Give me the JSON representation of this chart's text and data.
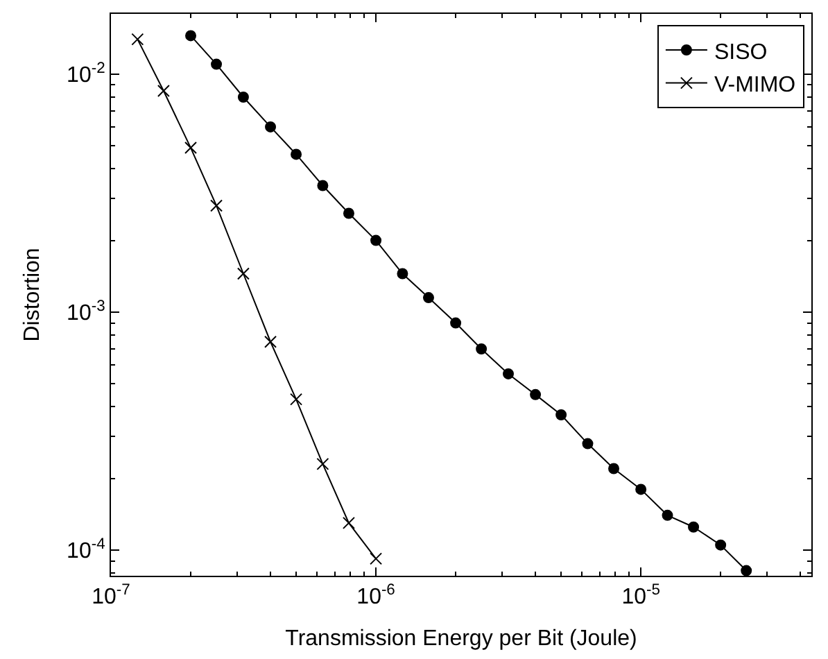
{
  "chart_data": {
    "type": "line",
    "xlabel": "Transmission Energy per Bit (Joule)",
    "ylabel": "Distortion",
    "log": "xy",
    "legend": "top right",
    "xlim": [
      1e-07,
      4.4e-05
    ],
    "ylim": [
      7.8e-05,
      0.0179
    ],
    "xticks": [
      {
        "value": 1e-07,
        "label": "10$^{-7}$"
      },
      {
        "value": 1e-06,
        "label": "10$^{-6}$"
      },
      {
        "value": 1e-05,
        "label": "10$^{-5}$"
      }
    ],
    "yticks": [
      {
        "value": 0.0001,
        "label": "10$^{-4}$"
      },
      {
        "value": 0.001,
        "label": "10$^{-3}$"
      },
      {
        "value": 0.01,
        "label": "10$^{-2}$"
      }
    ],
    "series": [
      {
        "name": "SISO",
        "color": "#000000",
        "marker": "circle",
        "line_style": "solid",
        "x": [
          2e-07,
          2.5e-07,
          3.16e-07,
          4e-07,
          5e-07,
          6.3e-07,
          7.9e-07,
          1e-06,
          1.26e-06,
          1.58e-06,
          2e-06,
          2.5e-06,
          3.16e-06,
          4e-06,
          5e-06,
          6.3e-06,
          7.9e-06,
          1e-05,
          1.26e-05,
          1.58e-05,
          2e-05,
          2.5e-05
        ],
        "values": [
          0.0145,
          0.011,
          0.008,
          0.006,
          0.0046,
          0.0034,
          0.0026,
          0.002,
          0.00145,
          0.00115,
          0.0009,
          0.0007,
          0.00055,
          0.00045,
          0.00037,
          0.00028,
          0.00022,
          0.00018,
          0.00014,
          0.000125,
          0.000105,
          8.2e-05
        ]
      },
      {
        "name": "V-MIMO",
        "color": "#000000",
        "marker": "cross",
        "line_style": "solid",
        "x": [
          1.26e-07,
          1.58e-07,
          2e-07,
          2.5e-07,
          3.16e-07,
          4e-07,
          5e-07,
          6.3e-07,
          7.9e-07,
          1e-06
        ],
        "values": [
          0.014,
          0.0085,
          0.0049,
          0.0028,
          0.00145,
          0.00075,
          0.00043,
          0.00023,
          0.00013,
          9.2e-05
        ]
      }
    ]
  }
}
